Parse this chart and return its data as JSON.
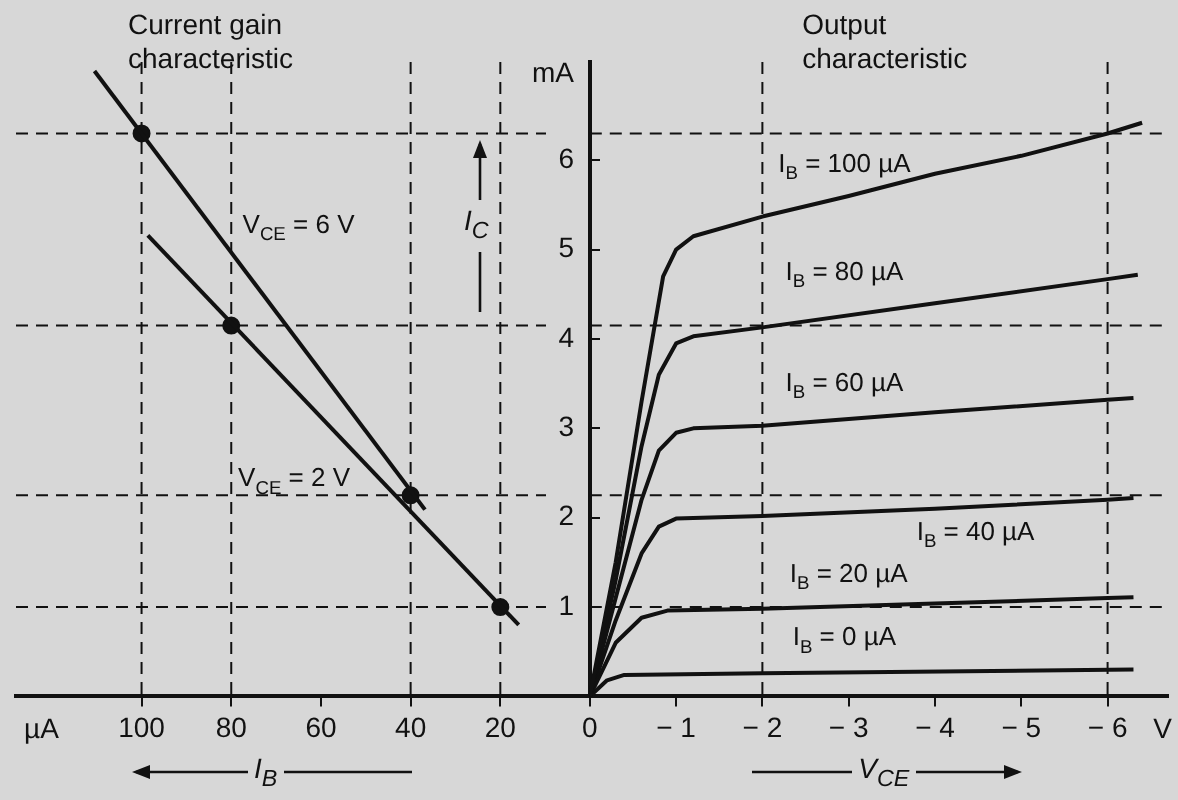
{
  "chart_data": [
    {
      "type": "line",
      "title": "Current gain characteristic",
      "xlabel": "I$_{B}$",
      "ylabel": "I$_{C}$",
      "xlim": [
        128,
        0
      ],
      "xticks": [
        100,
        80,
        60,
        40,
        20
      ],
      "ylim": [
        0,
        7.1
      ],
      "yticks": [
        1,
        2,
        3,
        4,
        5,
        6
      ],
      "grid": false,
      "legend": false,
      "marker": "none",
      "line_style": "solid",
      "series": [
        {
          "name": "V$_{CE}$ = 6 V",
          "color": "#111111",
          "x": [
            110.5,
            36.8
          ],
          "values": [
            7.0,
            2.09
          ]
        },
        {
          "name": "V$_{CE}$ = 2 V",
          "color": "#111111",
          "x": [
            98.6,
            15.9
          ],
          "values": [
            5.16,
            0.8
          ]
        },
        {
          "type": "scatter",
          "marker": "circle",
          "color": "#111111",
          "x": [
            100,
            80,
            40,
            20
          ],
          "values": [
            6.3,
            4.15,
            2.25,
            1.0
          ]
        }
      ],
      "annotations": [
        "mA",
        "µA"
      ],
      "ref_lines": [
        {
          "axis": "y",
          "value": 6.3,
          "line_style": "dashed"
        },
        {
          "axis": "y",
          "value": 4.15,
          "line_style": "dashed"
        },
        {
          "axis": "y",
          "value": 2.25,
          "line_style": "dashed"
        },
        {
          "axis": "y",
          "value": 1.0,
          "line_style": "dashed"
        },
        {
          "axis": "x",
          "value": 100,
          "line_style": "dashed"
        },
        {
          "axis": "x",
          "value": 80,
          "line_style": "dashed"
        },
        {
          "axis": "x",
          "value": 40,
          "line_style": "dashed"
        },
        {
          "axis": "x",
          "value": 20,
          "line_style": "dashed"
        }
      ]
    },
    {
      "type": "line",
      "title": "Output characteristic",
      "xlabel": "V$_{CE}$",
      "xlim": [
        0,
        -6.7
      ],
      "xticks": [
        0,
        {
          "value": -1,
          "label": "− 1"
        },
        {
          "value": -2,
          "label": "− 2"
        },
        {
          "value": -3,
          "label": "− 3"
        },
        {
          "value": -4,
          "label": "− 4"
        },
        {
          "value": -5,
          "label": "− 5"
        },
        {
          "value": -6,
          "label": "− 6"
        }
      ],
      "ylim": [
        0,
        7.1
      ],
      "yticks": [
        1,
        2,
        3,
        4,
        5,
        6
      ],
      "tick_labels": "x",
      "grid": false,
      "legend": false,
      "marker": "none",
      "line_style": "solid",
      "series": [
        {
          "name": "I$_{B}$ = 100 µA",
          "color": "#111111",
          "x": [
            0,
            -0.3,
            -0.6,
            -0.85,
            -1.0,
            -1.2,
            -2,
            -3,
            -4,
            -5,
            -6,
            -6.4
          ],
          "values": [
            0,
            1.5,
            3.3,
            4.7,
            5.0,
            5.15,
            5.37,
            5.6,
            5.85,
            6.05,
            6.3,
            6.42
          ]
        },
        {
          "name": "I$_{B}$ = 80 µA",
          "color": "#111111",
          "x": [
            0,
            -0.3,
            -0.6,
            -0.8,
            -1.0,
            -1.2,
            -2,
            -4,
            -6,
            -6.35
          ],
          "values": [
            0,
            1.3,
            2.8,
            3.6,
            3.95,
            4.03,
            4.13,
            4.4,
            4.67,
            4.72
          ]
        },
        {
          "name": "I$_{B}$ = 60 µA",
          "color": "#111111",
          "x": [
            0,
            -0.3,
            -0.6,
            -0.8,
            -1.0,
            -1.2,
            -2,
            -4,
            -6,
            -6.3
          ],
          "values": [
            0,
            1.1,
            2.2,
            2.75,
            2.95,
            3.0,
            3.03,
            3.18,
            3.32,
            3.34
          ]
        },
        {
          "name": "I$_{B}$ = 40 µA",
          "color": "#111111",
          "x": [
            0,
            -0.3,
            -0.6,
            -0.8,
            -1.0,
            -2,
            -4,
            -6,
            -6.3
          ],
          "values": [
            0,
            0.85,
            1.6,
            1.9,
            1.99,
            2.02,
            2.1,
            2.2,
            2.22
          ]
        },
        {
          "name": "I$_{B}$ = 20 µA",
          "color": "#111111",
          "x": [
            0,
            -0.3,
            -0.6,
            -0.9,
            -2,
            -4,
            -6,
            -6.3
          ],
          "values": [
            0,
            0.6,
            0.88,
            0.96,
            0.98,
            1.04,
            1.1,
            1.11
          ]
        },
        {
          "name": "I$_{B}$ = 0 µA",
          "color": "#111111",
          "x": [
            0,
            -0.2,
            -0.4,
            -2,
            -6.3
          ],
          "values": [
            0,
            0.18,
            0.24,
            0.26,
            0.3
          ]
        }
      ],
      "annotations": [
        "V"
      ],
      "ref_lines": [
        {
          "axis": "y",
          "value": 6.3,
          "line_style": "dashed"
        },
        {
          "axis": "y",
          "value": 4.15,
          "line_style": "dashed"
        },
        {
          "axis": "y",
          "value": 2.25,
          "line_style": "dashed"
        },
        {
          "axis": "y",
          "value": 1.0,
          "line_style": "dashed"
        },
        {
          "axis": "x",
          "value": -2,
          "line_style": "dashed"
        },
        {
          "axis": "x",
          "value": -6,
          "line_style": "dashed"
        }
      ]
    }
  ]
}
